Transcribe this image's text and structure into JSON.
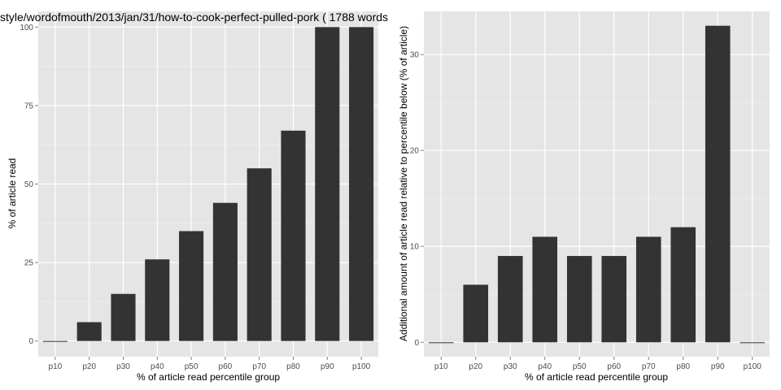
{
  "chart_data": [
    {
      "type": "bar",
      "title": "style/wordofmouth/2013/jan/31/how-to-cook-perfect-pulled-pork ( 1788 words",
      "xlabel": "% of article read percentile group",
      "ylabel": "% of article read",
      "categories": [
        "p10",
        "p20",
        "p30",
        "p40",
        "p50",
        "p60",
        "p70",
        "p80",
        "p90",
        "p100"
      ],
      "values": [
        0,
        6,
        15,
        26,
        35,
        44,
        55,
        67,
        100,
        100
      ],
      "ylim": [
        -5,
        105
      ],
      "yticks": [
        0,
        25,
        50,
        75,
        100
      ],
      "ytick_labels": [
        "0",
        "25",
        "50",
        "75",
        "100"
      ],
      "grid": true
    },
    {
      "type": "bar",
      "title": "",
      "xlabel": "% of article read percentile group",
      "ylabel": "Additional amount of article read relative to percentile below (% of article)",
      "categories": [
        "p10",
        "p20",
        "p30",
        "p40",
        "p50",
        "p60",
        "p70",
        "p80",
        "p90",
        "p100"
      ],
      "values": [
        0,
        6,
        9,
        11,
        9,
        9,
        11,
        12,
        33,
        0
      ],
      "ylim": [
        -1.5,
        34.5
      ],
      "yticks": [
        0,
        10,
        20,
        30
      ],
      "ytick_labels": [
        "0",
        "10",
        "20",
        "30"
      ],
      "grid": true
    }
  ]
}
